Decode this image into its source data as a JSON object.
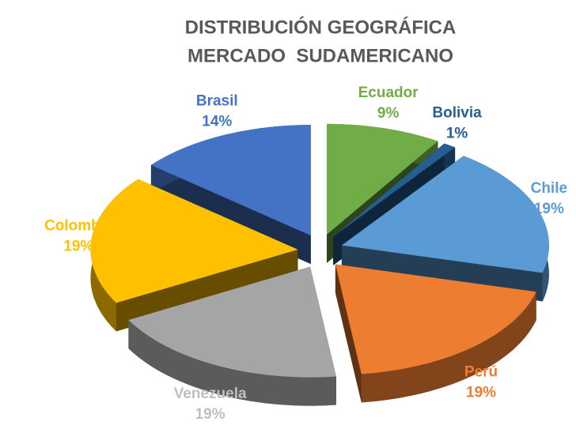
{
  "chart_data": {
    "type": "pie",
    "title": [
      "DISTRIBUCIÓN GEOGRÁFICA",
      "MERCADO  SUDAMERICANO"
    ],
    "categories": [
      "Ecuador",
      "Bolivia",
      "Chile",
      "Perú",
      "Venezuela",
      "Colombia",
      "Brasil"
    ],
    "values": [
      9,
      1,
      19,
      19,
      19,
      19,
      14
    ],
    "value_labels": [
      "9%",
      "1%",
      "19%",
      "19%",
      "19%",
      "19%",
      "14%"
    ],
    "colors": [
      "#70ad47",
      "#255e91",
      "#5b9bd5",
      "#ed7d31",
      "#a5a5a5",
      "#ffc000",
      "#4472c4"
    ],
    "label_colors": [
      "#70ad47",
      "#255e91",
      "#5b9bd5",
      "#ed7d31",
      "#bfbfbf",
      "#ffc000",
      "#4472c4"
    ]
  }
}
